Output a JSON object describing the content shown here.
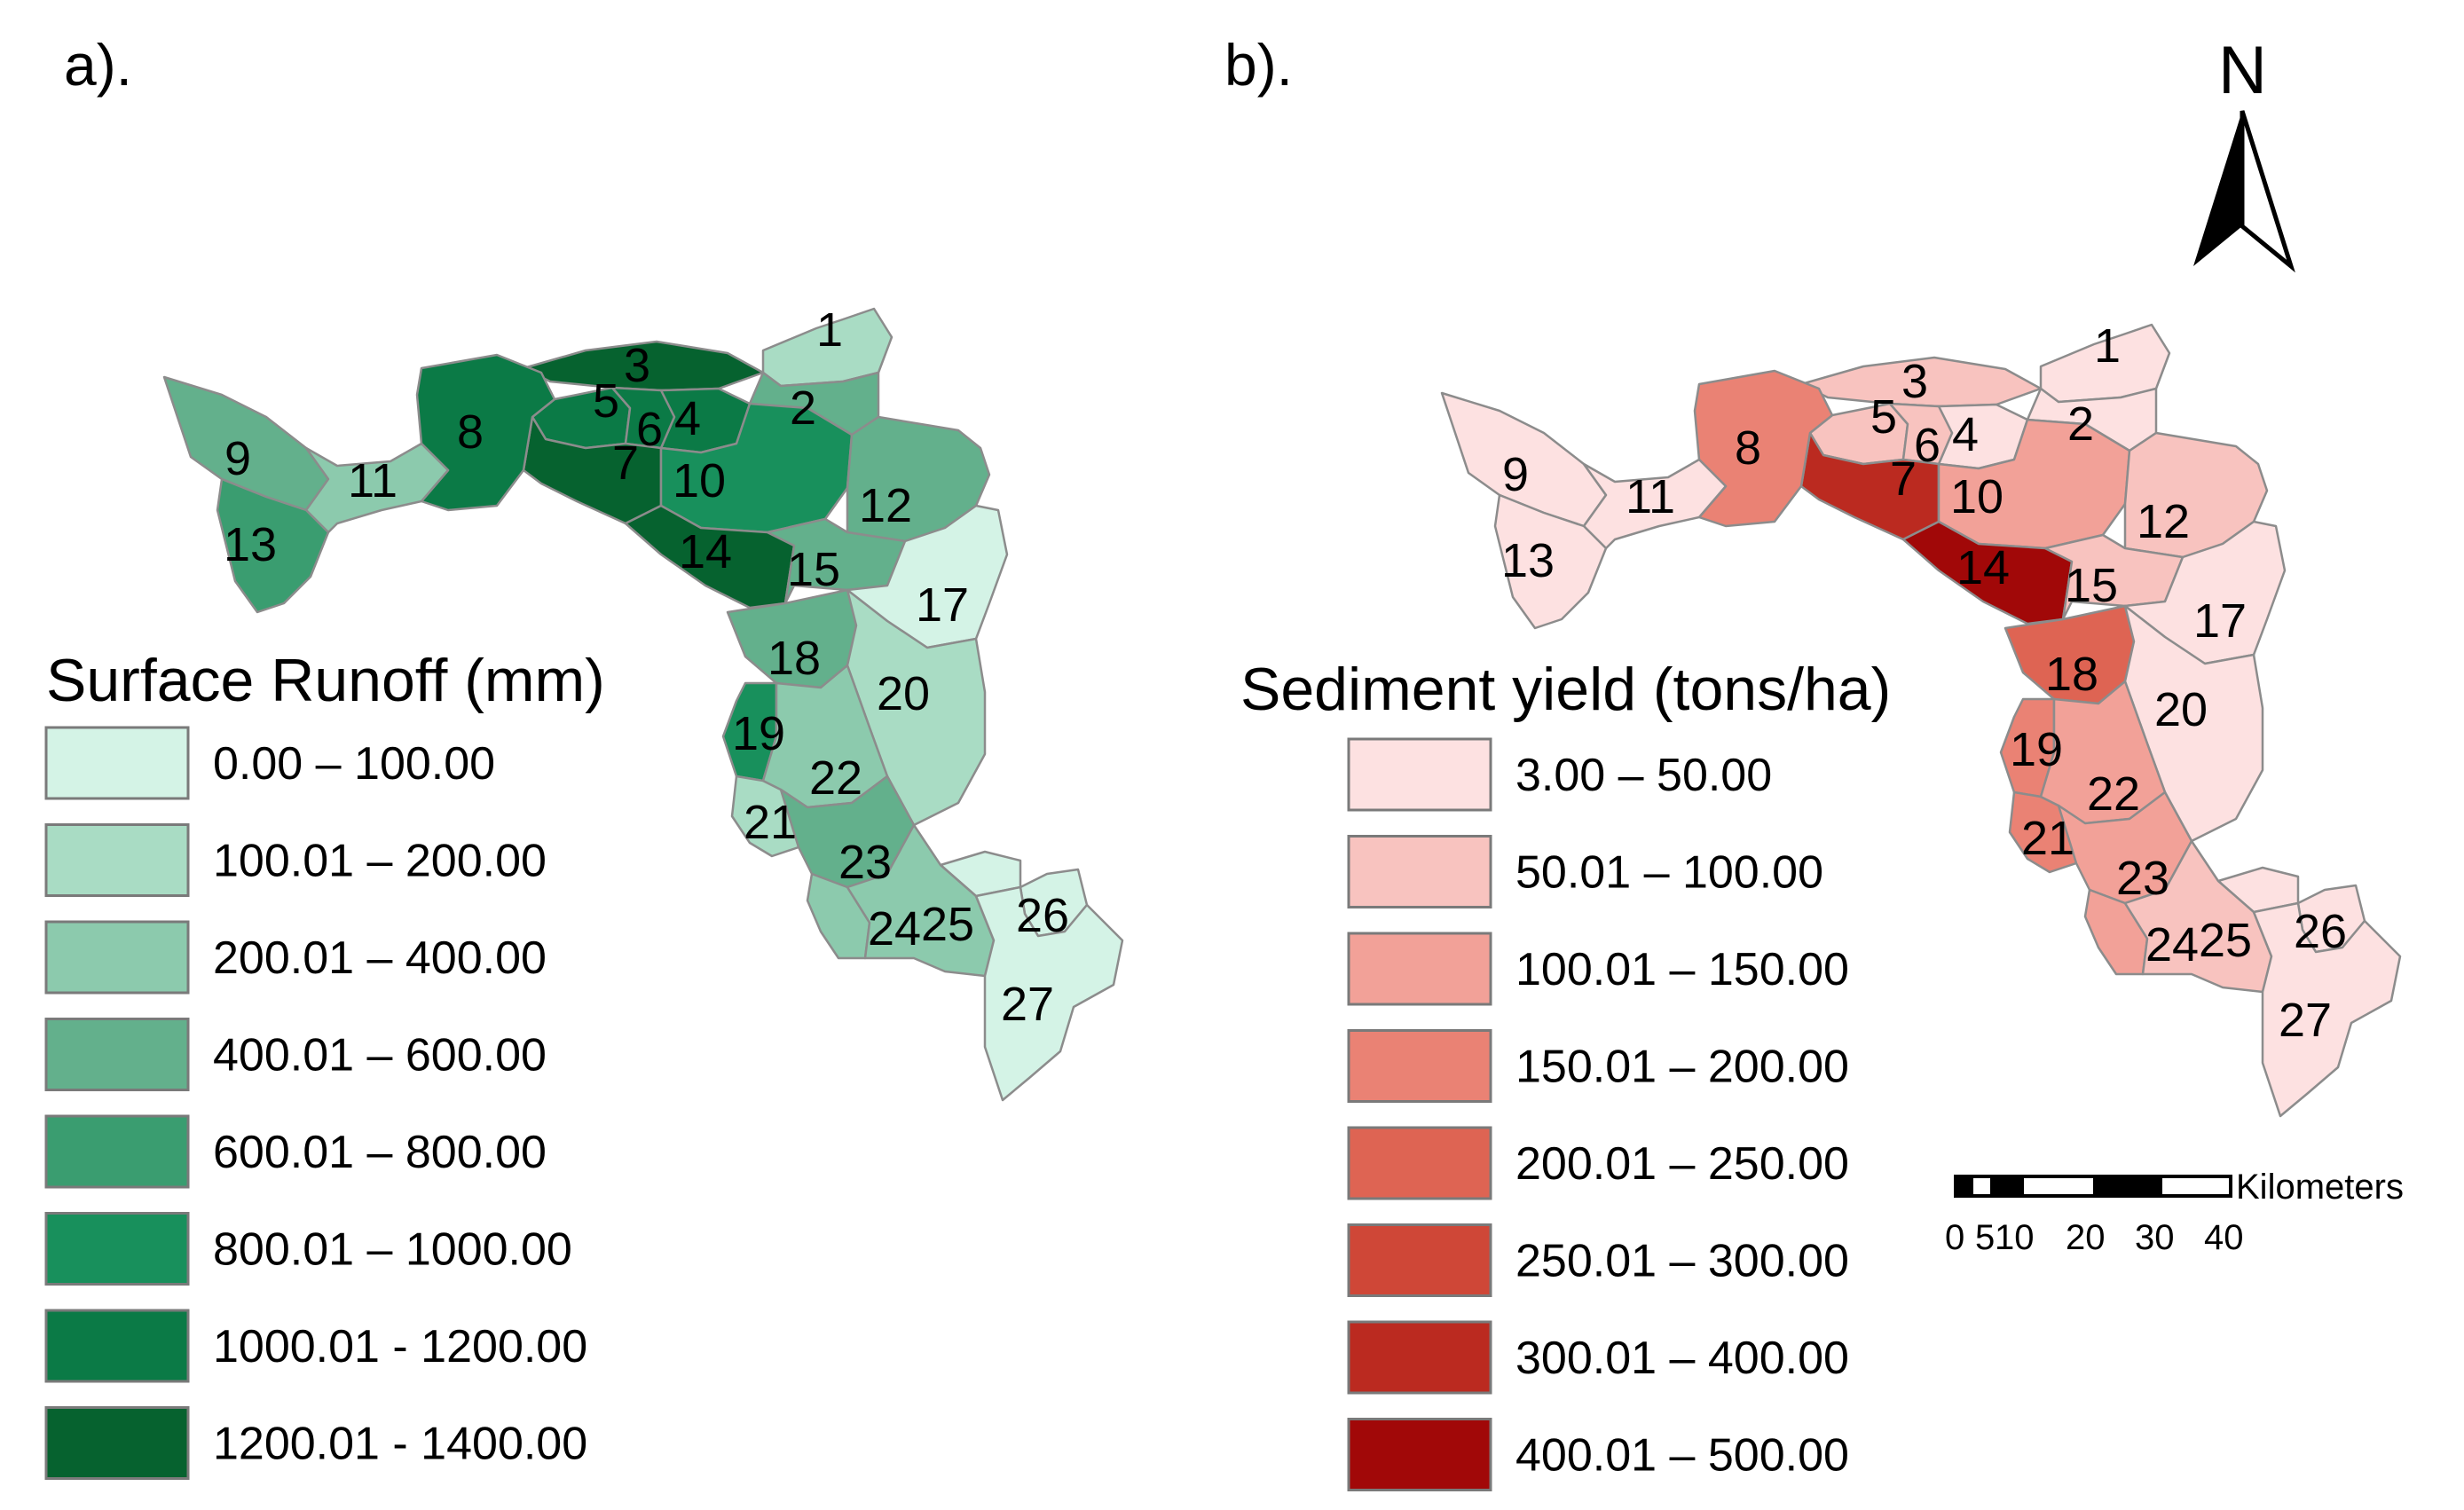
{
  "panels": [
    {
      "label": "a).",
      "legend": {
        "title": "Surface Runoff (mm)",
        "classes": [
          {
            "label": "0.00 – 100.00",
            "color": "#d4f3e6"
          },
          {
            "label": "100.01 – 200.00",
            "color": "#a9dcc4"
          },
          {
            "label": "200.01 – 400.00",
            "color": "#8ccaad"
          },
          {
            "label": "400.01 – 600.00",
            "color": "#63b08c"
          },
          {
            "label": "600.01 – 800.00",
            "color": "#3a9d70"
          },
          {
            "label": "800.01 – 1000.00",
            "color": "#18905c"
          },
          {
            "label": "1000.01 - 1200.00",
            "color": "#0b7a46"
          },
          {
            "label": "1200.01 - 1400.00",
            "color": "#06622f"
          }
        ]
      },
      "subbasin_class": {
        "1": 1,
        "2": 3,
        "3": 7,
        "4": 6,
        "5": 6,
        "6": 6,
        "7": 7,
        "8": 6,
        "9": 3,
        "10": 5,
        "11": 2,
        "12": 3,
        "13": 4,
        "14": 7,
        "15": 3,
        "16": 0,
        "17": 0,
        "18": 3,
        "19": 5,
        "20": 1,
        "21": 1,
        "22": 2,
        "23": 3,
        "24": 2,
        "25": 2,
        "26": 0,
        "27": 0
      }
    },
    {
      "label": "b).",
      "legend": {
        "title": "Sediment yield (tons/ha)",
        "classes": [
          {
            "label": "3.00 – 50.00",
            "color": "#fde1e1"
          },
          {
            "label": "50.01 – 100.00",
            "color": "#f8c3bf"
          },
          {
            "label": "100.01 – 150.00",
            "color": "#f2a198"
          },
          {
            "label": "150.01 – 200.00",
            "color": "#ea8274"
          },
          {
            "label": "200.01 – 250.00",
            "color": "#de6453"
          },
          {
            "label": "250.01 – 300.00",
            "color": "#cf4737"
          },
          {
            "label": "300.01 – 400.00",
            "color": "#bb2a20"
          },
          {
            "label": "400.01 – 500.00",
            "color": "#a10808"
          }
        ]
      },
      "subbasin_class": {
        "1": 0,
        "2": 0,
        "3": 1,
        "4": 0,
        "5": 1,
        "6": 1,
        "7": 6,
        "8": 3,
        "9": 0,
        "10": 2,
        "11": 0,
        "12": 1,
        "13": 0,
        "14": 7,
        "15": 1,
        "16": 0,
        "17": 0,
        "18": 4,
        "19": 3,
        "20": 0,
        "21": 3,
        "22": 2,
        "23": 2,
        "24": 2,
        "25": 1,
        "26": 0,
        "27": 0
      }
    }
  ],
  "subbasin_labels": [
    "1",
    "2",
    "3",
    "4",
    "5",
    "6",
    "7",
    "8",
    "9",
    "10",
    "11",
    "12",
    "13",
    "14",
    "15",
    "17",
    "18",
    "19",
    "20",
    "21",
    "22",
    "23",
    "24",
    "25",
    "26",
    "27"
  ],
  "north_arrow": {
    "letter": "N"
  },
  "scale_bar": {
    "unit": "Kilometers",
    "ticks": [
      "0",
      "5",
      "10",
      "20",
      "30",
      "40"
    ]
  }
}
